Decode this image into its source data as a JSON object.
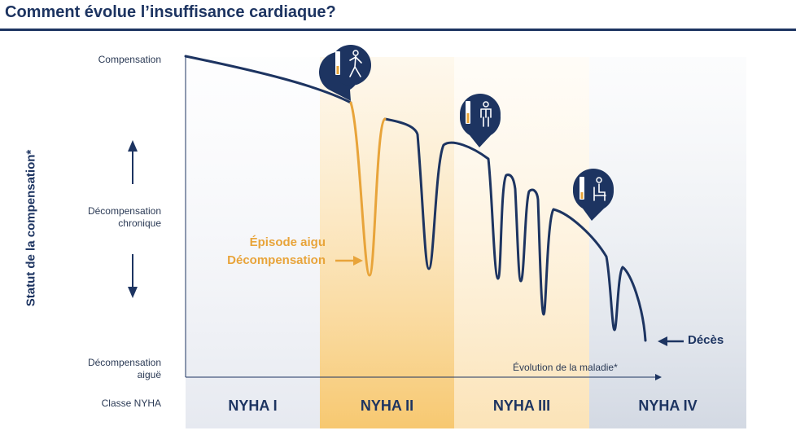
{
  "title": "Comment évolue l’insuffisance cardiaque?",
  "y_axis": {
    "title": "Statut de la compensation*",
    "levels": {
      "top": "Compensation",
      "mid_line1": "Décompensation",
      "mid_line2": "chronique",
      "bottom_line1": "Décompensation",
      "bottom_line2": "aiguë"
    }
  },
  "x_axis": {
    "label": "Évolution de la maladie*"
  },
  "class_row_label": "Classe NYHA",
  "classes": [
    "NYHA I",
    "NYHA II",
    "NYHA III",
    "NYHA IV"
  ],
  "annotations": {
    "episode_line1": "Épisode aigu",
    "episode_line2": "Décompensation",
    "death": "Décès"
  },
  "colors": {
    "navy": "#1d3461",
    "orange": "#e8a43a",
    "band_nyha1": "#eef0f5",
    "band_nyha2": "#f9d493",
    "band_nyha3": "#fcebc9",
    "band_nyha4": "#dde2ea"
  },
  "icons": [
    "walking-person-icon",
    "standing-person-icon",
    "sitting-person-icon"
  ]
}
